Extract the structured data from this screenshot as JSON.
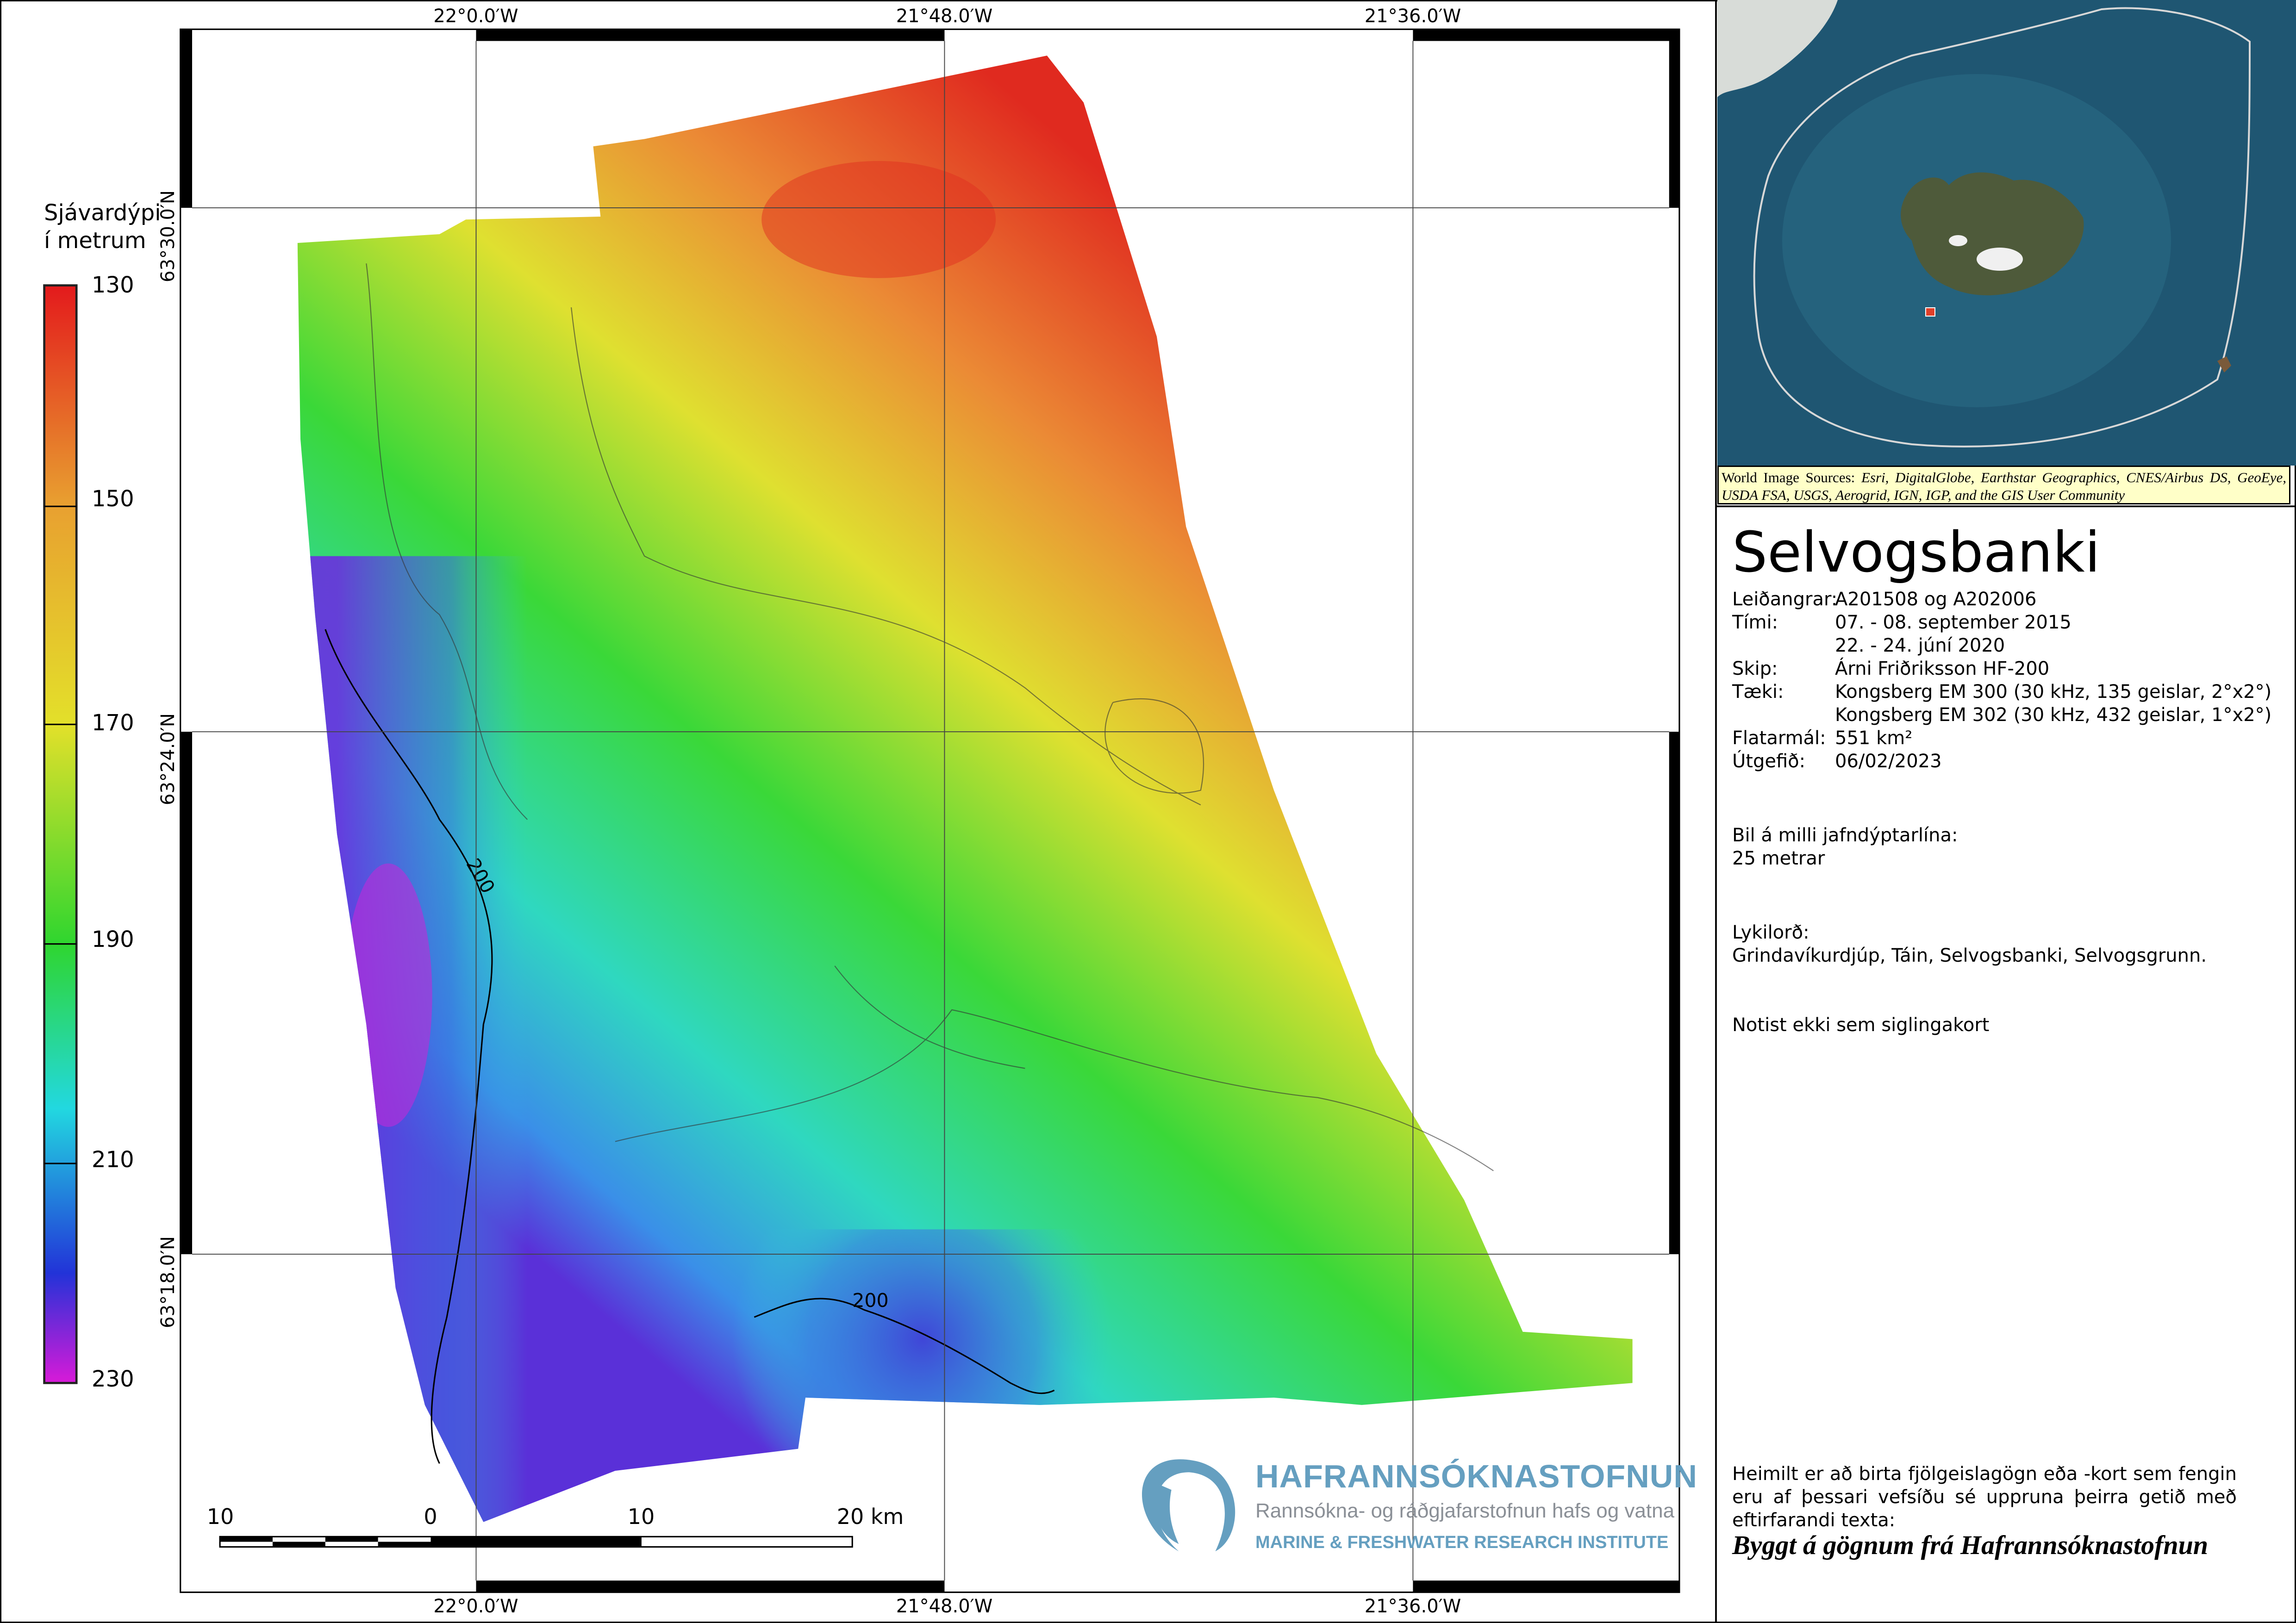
{
  "map": {
    "lon_labels": [
      "22°0.0′W",
      "21°48.0′W",
      "21°36.0′W"
    ],
    "lat_labels": [
      "63°30.0′N",
      "63°24.0′N",
      "63°18.0′N"
    ],
    "contour_labels": [
      "200",
      "200"
    ]
  },
  "legend": {
    "title_line1": "Sjávardýpi",
    "title_line2": "í metrum",
    "ticks": [
      "130",
      "150",
      "170",
      "190",
      "210",
      "230"
    ],
    "colors": [
      "#e31a1c",
      "#e8a030",
      "#e3e02a",
      "#2fd62f",
      "#22d8e0",
      "#2233d8",
      "#d81ad8"
    ]
  },
  "scalebar": {
    "labels": [
      "10",
      "0",
      "10",
      "20 km"
    ]
  },
  "logo": {
    "name": "HAFRANNSÓKNASTOFNUN",
    "subtitle": "Rannsókna- og ráðgjafarstofnun hafs og vatna",
    "english": "MARINE & FRESHWATER RESEARCH INSTITUTE"
  },
  "inset": {
    "attribution_prefix": "World Image Sources:",
    "attribution": "Esri, DigitalGlobe, Earthstar Geographics, CNES/Airbus DS, GeoEye, USDA FSA, USGS, Aerogrid, IGN, IGP, and the GIS User Community"
  },
  "info": {
    "title": "Selvogsbanki",
    "rows": [
      {
        "key": "Leiðangrar:",
        "value": "A201508 og A202006"
      },
      {
        "key": "Tími:",
        "value": "07. - 08. september 2015"
      },
      {
        "key": "",
        "value": "22. - 24. júní 2020"
      },
      {
        "key": "Skip:",
        "value": "Árni Friðriksson HF-200"
      },
      {
        "key": "Tæki:",
        "value": "Kongsberg EM 300 (30 kHz, 135 geislar, 2°x2°)"
      },
      {
        "key": "",
        "value": "Kongsberg EM 302 (30 kHz, 432 geislar, 1°x2°)"
      },
      {
        "key": "Flatarmál:",
        "value": "551 km²"
      },
      {
        "key": "Útgefið:",
        "value": "06/02/2023"
      }
    ],
    "contour_interval_label": "Bil á milli jafndýptarlína:",
    "contour_interval_value": "25 metrar",
    "keywords_label": "Lykilorð:",
    "keywords": "Grindavíkurdjúp, Táin, Selvogsbanki, Selvogsgrunn.",
    "disclaimer": "Notist ekki sem siglingakort",
    "permission": "Heimilt er að birta fjölgeislagögn eða -kort sem fengin eru af þessari vefsíðu sé uppruna þeirra getið með eftirfarandi texta:",
    "citation": "Byggt á gögnum frá Hafrannsóknastofnun"
  }
}
